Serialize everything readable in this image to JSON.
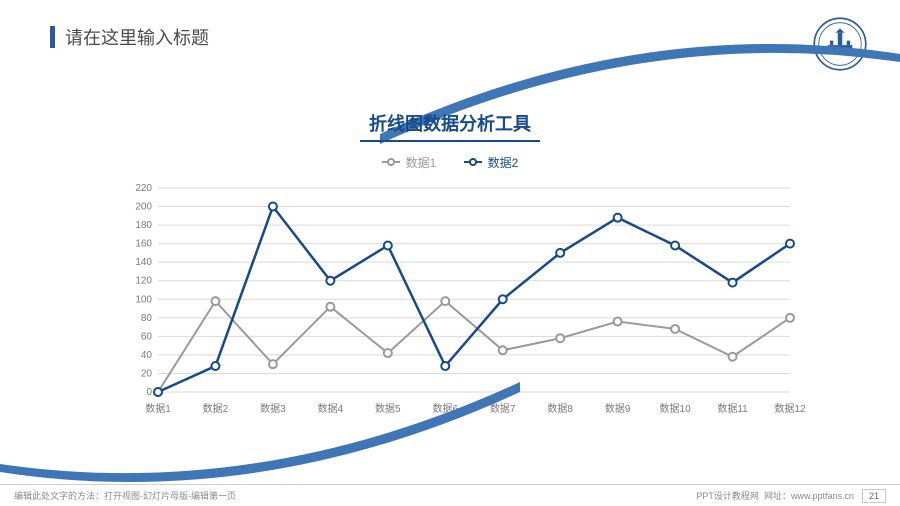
{
  "header": {
    "title": "请在这里输入标题",
    "accent_color": "#2a5a9a",
    "logo_stroke": "#2a5a9a",
    "arc_color": "#3f76b5"
  },
  "chart": {
    "type": "line",
    "title": "折线图数据分析工具",
    "title_color": "#164a8a",
    "title_fontsize": 18,
    "background_color": "#ffffff",
    "grid_color": "#d9d9d9",
    "grid_rows": 11,
    "ylim": [
      0,
      220
    ],
    "ytick_step": 20,
    "yticks": [
      0,
      20,
      40,
      60,
      80,
      100,
      120,
      140,
      160,
      180,
      200,
      220
    ],
    "categories": [
      "数据1",
      "数据2",
      "数据3",
      "数据4",
      "数据5",
      "数据6",
      "数据7",
      "数据8",
      "数据9",
      "数据10",
      "数据11",
      "数据12"
    ],
    "xlabel_fontsize": 10,
    "ylabel_fontsize": 10,
    "label_color": "#7a7a7a",
    "legend": {
      "position": "top-center",
      "fontsize": 12,
      "items": [
        {
          "label": "数据1",
          "color": "#9a9a9a"
        },
        {
          "label": "数据2",
          "color": "#164a8a"
        }
      ]
    },
    "series": [
      {
        "name": "数据1",
        "color": "#9a9a9a",
        "line_width": 2,
        "marker": "circle",
        "marker_size": 8,
        "marker_fill": "#ffffff",
        "values": [
          0,
          98,
          30,
          92,
          42,
          98,
          45,
          58,
          76,
          68,
          38,
          80
        ]
      },
      {
        "name": "数据2",
        "color": "#164a8a",
        "line_width": 2.5,
        "marker": "circle",
        "marker_size": 8,
        "marker_fill": "#ffffff",
        "values": [
          0,
          28,
          200,
          120,
          158,
          28,
          100,
          150,
          188,
          158,
          118,
          160
        ]
      }
    ]
  },
  "footer": {
    "left": "编辑此处文字的方法：打开视图-幻灯片母版-编辑第一页",
    "right_label": "PPT设计教程网",
    "right_url_label": "网址：",
    "right_url": "www.pptfans.cn",
    "page_number": "21"
  }
}
